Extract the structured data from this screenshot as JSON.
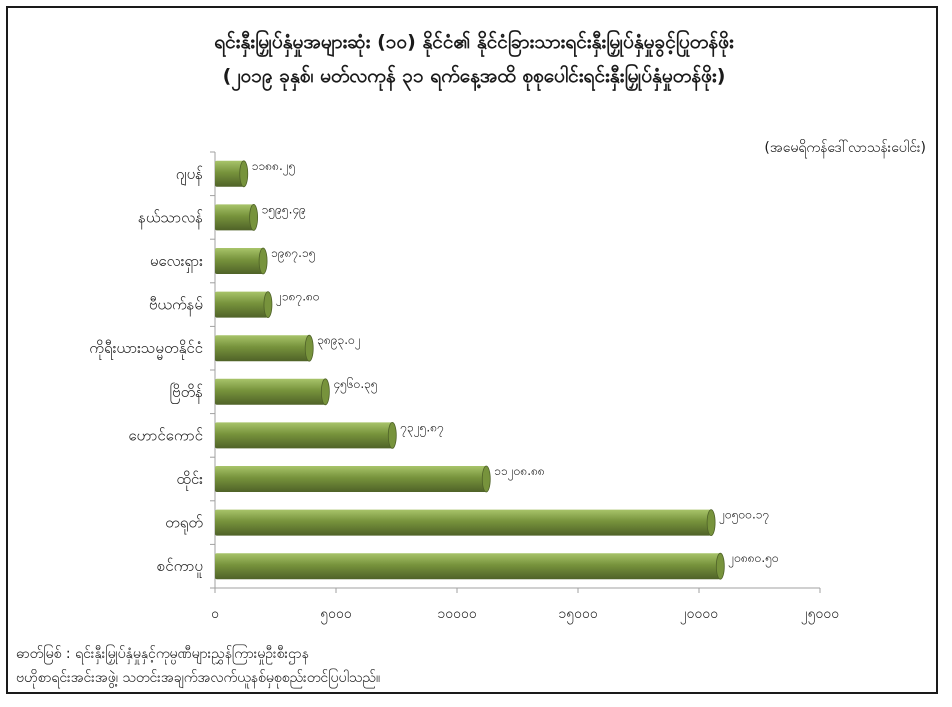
{
  "title_line1": "ရင်းနှီးမြှုပ်နှံမှုအများဆုံး (၁၀) နိုင်ငံ၏ နိုင်ငံခြားသားရင်းနှီးမြှုပ်နှံမှုခွင့်ပြုတန်ဖိုး",
  "title_line2": "(၂၀၁၉ ခုနှစ်၊ မတ်လကုန် ၃၁ ရက်နေ့အထိ စုစုပေါင်းရင်းနှီးမြှုပ်နှံမှုတန်ဖိုး)",
  "unit_label": "(အမေရိကန်ဒေါ်လာသန်းပေါင်း)",
  "source_line1": "ဓာတ်မြစ် : ရင်းနှီးမြှုပ်နှံမှုနှင့်ကုမ္ပဏီများညွှန်ကြားမှုဦးစီးဌာန",
  "source_line2": "ဗဟိုစာရင်းအင်းအဖွဲ့၊ သတင်းအချက်အလက်ယူနစ်မှစုစည်းတင်ပြပါသည်။",
  "colors": {
    "bar": "#77933c",
    "bar_light": "#a8c46a",
    "bar_dark": "#4f6228",
    "axis": "#a0a0a0"
  },
  "chart_data": {
    "type": "bar",
    "orientation": "horizontal",
    "categories": [
      "ဂျပန်",
      "နယ်သာလန်",
      "မလေးရှား",
      "ဗီယက်နမ်",
      "ကိုရီးယားသမ္မတနိုင်ငံ",
      "ဗြိတိန်",
      "ဟောင်ကောင်",
      "ထိုင်း",
      "တရုတ်",
      "စင်ကာပူ"
    ],
    "values": [
      1188.25,
      1595.49,
      1987.15,
      2187.8,
      3893.02,
      4560.35,
      7325.87,
      11208.88,
      20500.17,
      20880.5
    ],
    "value_labels": [
      "၁၁၈၈.၂၅",
      "၁၅၉၅.၄၉",
      "၁၉၈၇.၁၅",
      "၂၁၈၇.၈၀",
      "၃၈၉၃.၀၂",
      "၄၅၆၀.၃၅",
      "၇၃၂၅.၈၇",
      "၁၁၂၀၈.၈၈",
      "၂၀၅၀၀.၁၇",
      "၂၀၈၈၀.၅၀"
    ],
    "xlim": [
      0,
      25000
    ],
    "xticks": [
      0,
      5000,
      10000,
      15000,
      20000,
      25000
    ],
    "xtick_labels": [
      "၀",
      "၅၀၀၀",
      "၁၀၀၀၀",
      "၁၅၀၀၀",
      "၂၀၀၀၀",
      "၂၅၀၀၀"
    ],
    "grid": false,
    "legend": "none"
  }
}
